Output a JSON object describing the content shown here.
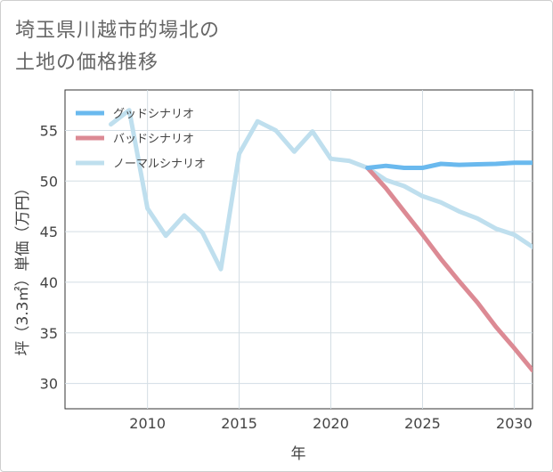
{
  "title_line1": "埼玉県川越市的場北の",
  "title_line2": "土地の価格推移",
  "chart_data": {
    "type": "line",
    "xlabel": "年",
    "ylabel": "坪（3.3㎡）単価（万円）",
    "xlim": [
      2005.5,
      2031
    ],
    "ylim": [
      27.5,
      59
    ],
    "xticks": [
      2010,
      2015,
      2020,
      2025,
      2030
    ],
    "yticks": [
      30,
      35,
      40,
      45,
      50,
      55
    ],
    "grid": true,
    "legend_position": "top-left",
    "series": [
      {
        "name": "グッドシナリオ",
        "color": "#6ab9ee",
        "x": [
          2022,
          2023,
          2024,
          2025,
          2026,
          2027,
          2028,
          2029,
          2030,
          2031
        ],
        "y": [
          51.3,
          51.5,
          51.3,
          51.3,
          51.7,
          51.6,
          51.65,
          51.7,
          51.8,
          51.8
        ]
      },
      {
        "name": "バッドシナリオ",
        "color": "#dc8a94",
        "x": [
          2022,
          2023,
          2024,
          2025,
          2026,
          2027,
          2028,
          2029,
          2030,
          2031
        ],
        "y": [
          51.3,
          49.3,
          47.0,
          44.7,
          42.3,
          40.1,
          38.0,
          35.6,
          33.5,
          31.3
        ]
      },
      {
        "name": "ノーマルシナリオ",
        "color": "#bfdfee",
        "x": [
          2008,
          2009,
          2010,
          2011,
          2012,
          2013,
          2014,
          2015,
          2016,
          2017,
          2018,
          2019,
          2020,
          2021,
          2022,
          2023,
          2024,
          2025,
          2026,
          2027,
          2028,
          2029,
          2030,
          2031
        ],
        "y": [
          55.6,
          57.0,
          47.3,
          44.6,
          46.6,
          44.9,
          41.3,
          52.7,
          55.9,
          55.0,
          52.9,
          54.9,
          52.2,
          52.0,
          51.3,
          50.1,
          49.5,
          48.5,
          47.9,
          47.0,
          46.3,
          45.3,
          44.7,
          43.5
        ]
      }
    ]
  }
}
